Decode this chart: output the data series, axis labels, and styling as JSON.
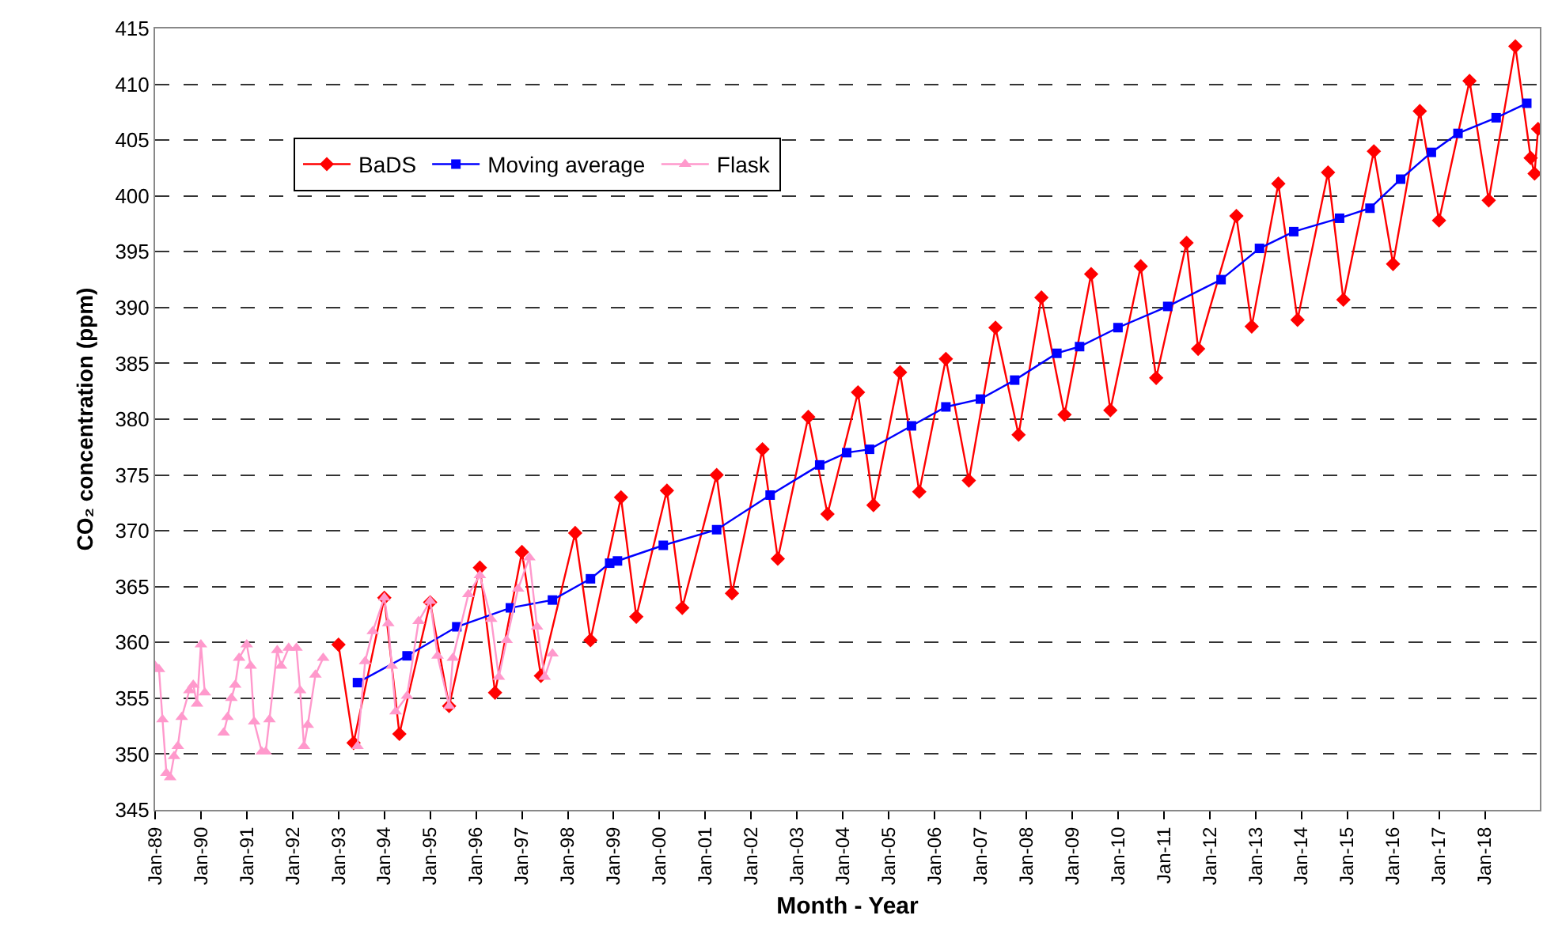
{
  "chart_data": {
    "type": "line",
    "xlabel": "Month - Year",
    "ylabel": "CO₂ concentration (ppm)",
    "xlim": [
      "1989-01-01",
      "2019-03-15"
    ],
    "xticks": [
      {
        "value": "1989-01-01",
        "label": "Jan-89"
      },
      {
        "value": "1990-01-01",
        "label": "Jan-90"
      },
      {
        "value": "1991-01-01",
        "label": "Jan-91"
      },
      {
        "value": "1992-01-01",
        "label": "Jan-92"
      },
      {
        "value": "1993-01-01",
        "label": "Jan-93"
      },
      {
        "value": "1994-01-01",
        "label": "Jan-94"
      },
      {
        "value": "1995-01-01",
        "label": "Jan-95"
      },
      {
        "value": "1996-01-01",
        "label": "Jan-96"
      },
      {
        "value": "1997-01-01",
        "label": "Jan-97"
      },
      {
        "value": "1998-01-01",
        "label": "Jan-98"
      },
      {
        "value": "1999-01-01",
        "label": "Jan-99"
      },
      {
        "value": "2000-01-01",
        "label": "Jan-00"
      },
      {
        "value": "2001-01-01",
        "label": "Jan-01"
      },
      {
        "value": "2002-01-01",
        "label": "Jan-02"
      },
      {
        "value": "2003-01-01",
        "label": "Jan-03"
      },
      {
        "value": "2004-01-01",
        "label": "Jan-04"
      },
      {
        "value": "2005-01-01",
        "label": "Jan-05"
      },
      {
        "value": "2006-01-01",
        "label": "Jan-06"
      },
      {
        "value": "2007-01-01",
        "label": "Jan-07"
      },
      {
        "value": "2008-01-01",
        "label": "Jan-08"
      },
      {
        "value": "2009-01-01",
        "label": "Jan-09"
      },
      {
        "value": "2010-01-01",
        "label": "Jan-10"
      },
      {
        "value": "2011-01-01",
        "label": "Jan-11"
      },
      {
        "value": "2012-01-01",
        "label": "Jan-12"
      },
      {
        "value": "2013-01-01",
        "label": "Jan-13"
      },
      {
        "value": "2014-01-01",
        "label": "Jan-14"
      },
      {
        "value": "2015-01-01",
        "label": "Jan-15"
      },
      {
        "value": "2016-01-01",
        "label": "Jan-16"
      },
      {
        "value": "2017-01-01",
        "label": "Jan-17"
      },
      {
        "value": "2018-01-01",
        "label": "Jan-18"
      }
    ],
    "ylim": [
      345,
      415
    ],
    "yticks": [
      345,
      350,
      355,
      360,
      365,
      370,
      375,
      380,
      385,
      390,
      395,
      400,
      405,
      410,
      415
    ],
    "grid": "y",
    "line_style": "solid",
    "legend": "top left",
    "series": [
      {
        "name": "BaDS",
        "color": "#ff0000",
        "marker": "diamond",
        "x": [
          "1993-01",
          "1993-05",
          "1994-01",
          "1994-05",
          "1995-01",
          "1995-06",
          "1996-02",
          "1996-06",
          "1997-01",
          "1997-06",
          "1998-03",
          "1998-07",
          "1999-03",
          "1999-07",
          "2000-03",
          "2000-07",
          "2001-04",
          "2001-08",
          "2002-04",
          "2002-08",
          "2003-04",
          "2003-09",
          "2004-05",
          "2004-09",
          "2005-04",
          "2005-09",
          "2006-04",
          "2006-10",
          "2007-05",
          "2007-11",
          "2008-05",
          "2008-11",
          "2009-06",
          "2009-11",
          "2010-07",
          "2010-11",
          "2011-07",
          "2011-10",
          "2012-08",
          "2012-12",
          "2013-07",
          "2013-12",
          "2014-08",
          "2014-12",
          "2015-08",
          "2016-01",
          "2016-08",
          "2017-01",
          "2017-09",
          "2018-02",
          "2018-09",
          "2019-01",
          "2019-02",
          "2019-03"
        ],
        "values": [
          359.8,
          351.0,
          364.0,
          351.8,
          363.6,
          354.3,
          366.7,
          355.5,
          368.1,
          357.0,
          369.8,
          360.2,
          373.0,
          362.3,
          373.6,
          363.1,
          375.0,
          364.4,
          377.3,
          367.5,
          380.2,
          371.5,
          382.4,
          372.3,
          384.2,
          373.5,
          385.4,
          374.5,
          388.2,
          378.6,
          390.9,
          380.4,
          393.0,
          380.8,
          393.7,
          383.7,
          395.8,
          386.3,
          398.2,
          388.3,
          401.1,
          388.9,
          402.1,
          390.7,
          404.0,
          393.9,
          407.6,
          397.8,
          410.3,
          399.6,
          413.4,
          403.4,
          402.0,
          406.0
        ]
      },
      {
        "name": "Moving average",
        "color": "#0000ff",
        "marker": "square",
        "x": [
          "1993-06",
          "1994-07",
          "1995-08",
          "1996-10",
          "1997-09",
          "1998-07",
          "1998-12",
          "1999-02",
          "2000-02",
          "2001-04",
          "2002-06",
          "2003-07",
          "2004-02",
          "2004-08",
          "2005-07",
          "2006-04",
          "2007-01",
          "2007-10",
          "2008-09",
          "2009-03",
          "2010-01",
          "2011-02",
          "2012-04",
          "2013-02",
          "2013-11",
          "2014-11",
          "2015-07",
          "2016-03",
          "2016-11",
          "2017-06",
          "2018-04",
          "2018-12"
        ],
        "values": [
          356.4,
          358.8,
          361.4,
          363.1,
          363.8,
          365.7,
          367.1,
          367.3,
          368.7,
          370.1,
          373.2,
          375.9,
          377.0,
          377.3,
          379.4,
          381.1,
          381.8,
          383.5,
          385.9,
          386.5,
          388.2,
          390.1,
          392.5,
          395.3,
          396.8,
          398.0,
          398.9,
          401.5,
          403.9,
          405.6,
          407.0,
          408.3
        ]
      },
      {
        "name": "Flask",
        "color": "#ff99cc",
        "marker": "triangle",
        "x": [
          "1989-01",
          "1989-02",
          "1989-03",
          "1989-04",
          "1989-05",
          "1989-06",
          "1989-07",
          "1989-08",
          "1989-10",
          "1989-11",
          "1989-12",
          "1990-01",
          "1990-02",
          "1990-04",
          "1990-07",
          "1990-08",
          "1990-09",
          "1990-10",
          "1990-11",
          "1991-01",
          "1991-02",
          "1991-03",
          "1991-05",
          "1991-06",
          "1991-07",
          "1991-09",
          "1991-10",
          "1991-12",
          "1992-02",
          "1992-03",
          "1992-04",
          "1992-05",
          "1992-07",
          "1992-09",
          "1993-02",
          "1993-06",
          "1993-08",
          "1993-10",
          "1994-01",
          "1994-02",
          "1994-03",
          "1994-04",
          "1994-07",
          "1994-10",
          "1995-01",
          "1995-03",
          "1995-06",
          "1995-07",
          "1995-11",
          "1996-02",
          "1996-05",
          "1996-07",
          "1996-09",
          "1996-12",
          "1997-03",
          "1997-05",
          "1997-07",
          "1997-09"
        ],
        "values": [
          357.9,
          357.6,
          353.1,
          348.3,
          347.9,
          349.8,
          350.7,
          353.3,
          355.7,
          356.2,
          354.5,
          359.8,
          355.5,
          null,
          351.9,
          353.3,
          355.0,
          356.2,
          358.6,
          359.8,
          357.9,
          352.9,
          350.2,
          350.2,
          353.1,
          359.3,
          357.9,
          359.5,
          359.5,
          355.7,
          350.7,
          352.6,
          357.1,
          358.6,
          null,
          350.7,
          358.3,
          361.0,
          364.0,
          361.7,
          357.9,
          353.8,
          355.2,
          361.9,
          363.7,
          358.8,
          354.3,
          358.6,
          364.3,
          366.0,
          362.1,
          356.9,
          360.2,
          364.8,
          367.6,
          361.4,
          356.9,
          359.0
        ]
      }
    ]
  }
}
